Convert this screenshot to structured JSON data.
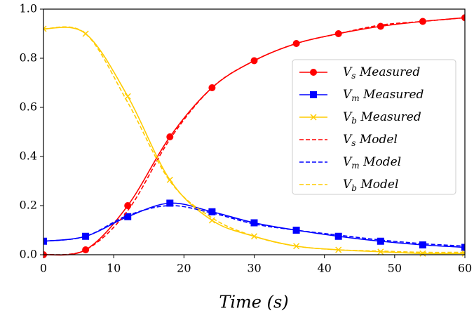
{
  "chart_data": {
    "type": "line",
    "xlabel": "Time (s)",
    "x": [
      0,
      6,
      12,
      18,
      24,
      30,
      36,
      42,
      48,
      54,
      60
    ],
    "series": [
      {
        "name": "Vs Measured",
        "color": "#ff0000",
        "marker": "o",
        "linestyle": "solid",
        "values": [
          0.0,
          0.02,
          0.2,
          0.48,
          0.68,
          0.79,
          0.86,
          0.9,
          0.93,
          0.95,
          0.965
        ]
      },
      {
        "name": "Vm Measured",
        "color": "#0000ff",
        "marker": "s",
        "linestyle": "solid",
        "values": [
          0.055,
          0.075,
          0.155,
          0.21,
          0.175,
          0.13,
          0.1,
          0.075,
          0.055,
          0.04,
          0.03
        ]
      },
      {
        "name": "Vb Measured",
        "color": "#ffcc00",
        "marker": "x",
        "linestyle": "solid",
        "values": [
          0.92,
          0.9,
          0.645,
          0.305,
          0.14,
          0.075,
          0.035,
          0.02,
          0.012,
          0.005,
          0.005
        ]
      },
      {
        "name": "Vs Model",
        "color": "#ff0000",
        "linestyle": "dashed",
        "values": [
          0.0,
          0.02,
          0.18,
          0.47,
          0.68,
          0.79,
          0.86,
          0.9,
          0.935,
          0.95,
          0.965
        ]
      },
      {
        "name": "Vm Model",
        "color": "#0000ff",
        "linestyle": "dashed",
        "values": [
          0.055,
          0.075,
          0.16,
          0.2,
          0.17,
          0.125,
          0.1,
          0.08,
          0.06,
          0.045,
          0.035
        ]
      },
      {
        "name": "Vb Model",
        "color": "#ffcc00",
        "linestyle": "dashed",
        "values": [
          0.92,
          0.9,
          0.62,
          0.3,
          0.15,
          0.075,
          0.035,
          0.02,
          0.015,
          0.01,
          0.01
        ]
      }
    ],
    "xlim": [
      0,
      60
    ],
    "xticks": [
      0,
      10,
      20,
      30,
      40,
      50,
      60
    ],
    "ylim": [
      0,
      1.0
    ],
    "yticks": [
      {
        "value": 0,
        "label": "0.0"
      },
      {
        "value": 0.2,
        "label": "0.2"
      },
      {
        "value": 0.4,
        "label": "0.4"
      },
      {
        "value": 0.6,
        "label": "0.6"
      },
      {
        "value": 0.8,
        "label": "0.8"
      },
      {
        "value": 1.0,
        "label": "1.0"
      }
    ],
    "legend": "center right"
  }
}
